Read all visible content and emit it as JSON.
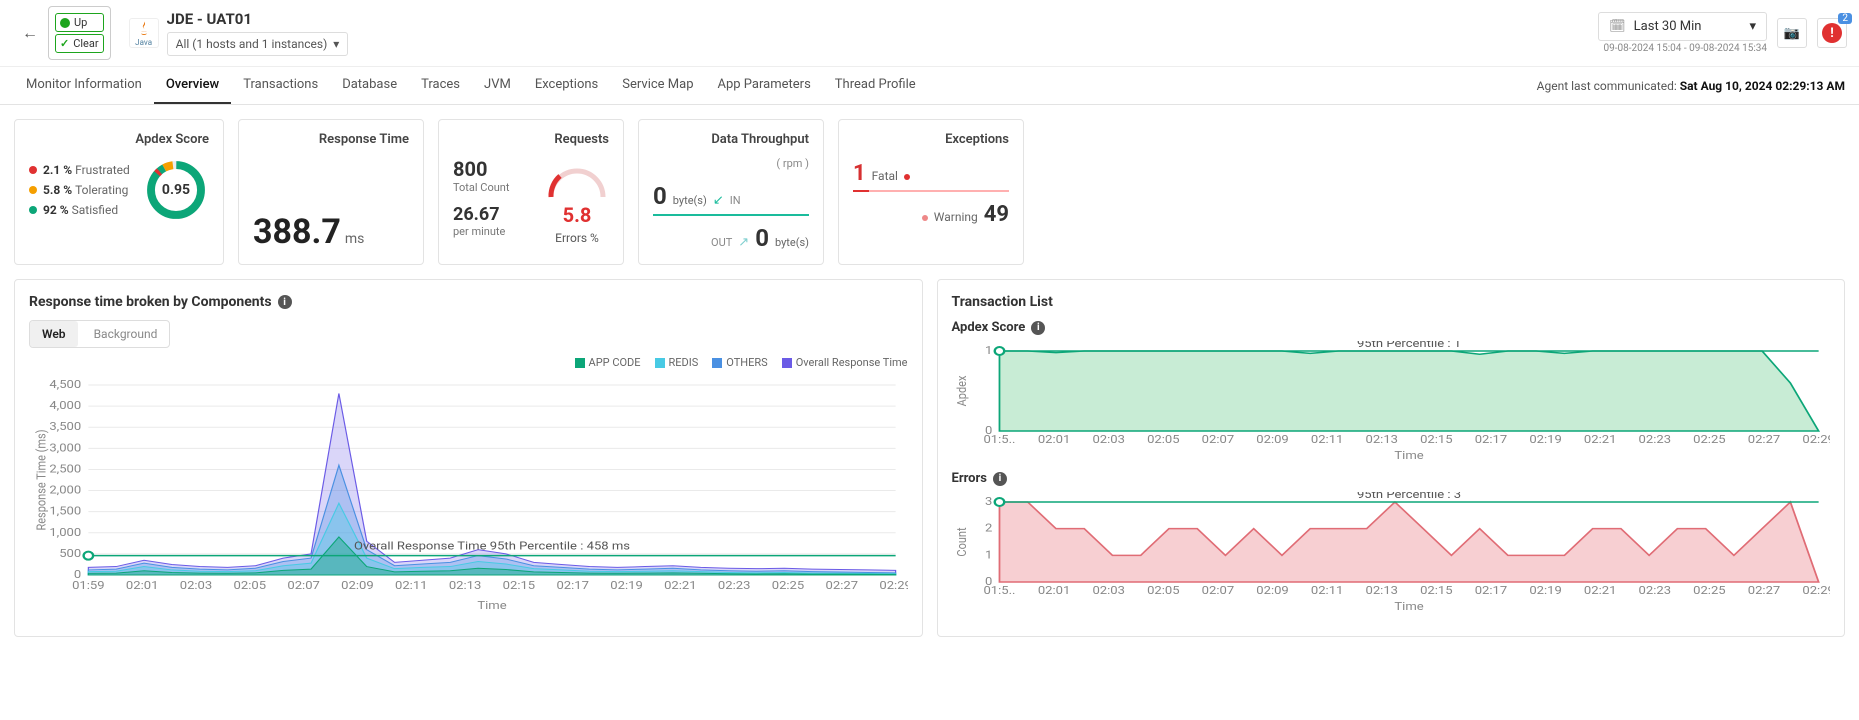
{
  "header": {
    "status_up": "Up",
    "status_clear": "Clear",
    "java_label": "Java",
    "app_title": "JDE - UAT01",
    "host_selector": "All (1 hosts and 1 instances)",
    "timerange_label": "Last 30 Min",
    "timerange_sub": "09-08-2024 15:04 - 09-08-2024 15:34",
    "alert_count": "2",
    "agent_comm_prefix": "Agent last communicated: ",
    "agent_comm_time": "Sat Aug 10, 2024 02:29:13 AM"
  },
  "tabs": [
    "Monitor Information",
    "Overview",
    "Transactions",
    "Database",
    "Traces",
    "JVM",
    "Exceptions",
    "Service Map",
    "App Parameters",
    "Thread Profile"
  ],
  "active_tab": 1,
  "cards": {
    "apdex": {
      "title": "Apdex Score",
      "score": "0.95",
      "items": [
        {
          "pct": "2.1 %",
          "label": "Frustrated",
          "color": "#e03131"
        },
        {
          "pct": "5.8 %",
          "label": "Tolerating",
          "color": "#f59f00"
        },
        {
          "pct": "92 %",
          "label": "Satisfied",
          "color": "#0ca678"
        }
      ],
      "donut_colors": {
        "satisfied": "#0ca678",
        "tolerating": "#f59f00",
        "frustrated": "#e03131",
        "bg": "#e9ecef"
      }
    },
    "response_time": {
      "title": "Response Time",
      "value": "388.7",
      "unit": "ms"
    },
    "requests": {
      "title": "Requests",
      "total_count": "800",
      "total_label": "Total Count",
      "per_min": "26.67",
      "per_min_label": "per minute",
      "errors_pct": "5.8",
      "errors_label": "Errors %",
      "gauge_color": "#e03131",
      "gauge_bg": "#f1b7b7"
    },
    "data_throughput": {
      "title": "Data Throughput",
      "sub": "( rpm )",
      "in_val": "0",
      "in_unit": "byte(s)",
      "in_label": "IN",
      "out_val": "0",
      "out_unit": "byte(s)",
      "out_label": "OUT",
      "bar_color": "#1abc9c"
    },
    "exceptions": {
      "title": "Exceptions",
      "fatal_val": "1",
      "fatal_label": "Fatal",
      "warn_val": "49",
      "warn_label": "Warning",
      "fatal_color": "#e03131",
      "warn_color": "#e88"
    }
  },
  "main_chart": {
    "title": "Response time broken by Components",
    "subtabs": [
      "Web",
      "Background"
    ],
    "active_subtab": 0,
    "legend": [
      {
        "label": "APP CODE",
        "color": "#0ca678"
      },
      {
        "label": "REDIS",
        "color": "#48cae4"
      },
      {
        "label": "OTHERS",
        "color": "#4a90e2"
      },
      {
        "label": "Overall Response Time",
        "color": "#6b5be6"
      }
    ],
    "y_label": "Response Time (ms)",
    "x_label": "Time",
    "y_max": 4500,
    "y_ticks": [
      0,
      500,
      1000,
      1500,
      2000,
      2500,
      3000,
      3500,
      4000,
      4500
    ],
    "x_ticks": [
      "01:59",
      "02:01",
      "02:03",
      "02:05",
      "02:07",
      "02:09",
      "02:11",
      "02:13",
      "02:15",
      "02:17",
      "02:19",
      "02:21",
      "02:23",
      "02:25",
      "02:27",
      "02:29"
    ],
    "percentile_label": "Overall Response Time 95th Percentile : 458 ms",
    "percentile_y": 458,
    "series_overall": [
      180,
      200,
      350,
      250,
      200,
      180,
      220,
      400,
      500,
      4300,
      800,
      300,
      350,
      400,
      600,
      500,
      300,
      250,
      200,
      180,
      200,
      220,
      180,
      160,
      150,
      160,
      140,
      130,
      120,
      110
    ],
    "series_others": [
      120,
      140,
      280,
      180,
      140,
      120,
      160,
      320,
      400,
      2600,
      600,
      220,
      260,
      300,
      460,
      380,
      220,
      180,
      140,
      120,
      140,
      160,
      120,
      100,
      90,
      100,
      80,
      70,
      60,
      50
    ],
    "series_redis": [
      80,
      90,
      200,
      120,
      90,
      80,
      100,
      220,
      280,
      1700,
      400,
      150,
      180,
      200,
      320,
      260,
      150,
      120,
      90,
      80,
      90,
      100,
      80,
      60,
      50,
      60,
      45,
      40,
      35,
      30
    ],
    "series_appcode": [
      40,
      45,
      100,
      60,
      45,
      40,
      50,
      110,
      140,
      900,
      200,
      75,
      90,
      100,
      160,
      130,
      75,
      60,
      45,
      40,
      45,
      50,
      40,
      30,
      25,
      30,
      22,
      20,
      18,
      15
    ],
    "grid_color": "#eaeaea",
    "baseline_color": "#0ca678"
  },
  "right_panel": {
    "title": "Transaction List",
    "apdex": {
      "title": "Apdex Score",
      "y_label": "Apdex",
      "x_label": "Time",
      "percentile_label": "95th Percentile : 1",
      "y_max": 1,
      "x_ticks": [
        "01:5..",
        "02:01",
        "02:03",
        "02:05",
        "02:07",
        "02:09",
        "02:11",
        "02:13",
        "02:15",
        "02:17",
        "02:19",
        "02:21",
        "02:23",
        "02:25",
        "02:27",
        "02:29"
      ],
      "values": [
        1,
        1,
        0.98,
        1,
        1,
        1,
        1,
        1,
        1,
        1,
        1,
        0.97,
        1,
        1,
        1,
        1,
        1,
        0.96,
        1,
        1,
        0.97,
        1,
        1,
        1,
        1,
        1,
        1,
        1,
        0.6,
        0
      ],
      "fill": "#c8ecd5",
      "line": "#0ca678",
      "pct_line": "#0ca678"
    },
    "errors": {
      "title": "Errors",
      "y_label": "Count",
      "x_label": "Time",
      "percentile_label": "95th Percentile : 3",
      "y_max": 3,
      "x_ticks": [
        "01:5..",
        "02:01",
        "02:03",
        "02:05",
        "02:07",
        "02:09",
        "02:11",
        "02:13",
        "02:15",
        "02:17",
        "02:19",
        "02:21",
        "02:23",
        "02:25",
        "02:27",
        "02:29"
      ],
      "values": [
        3,
        3,
        2,
        2,
        1,
        1,
        2,
        2,
        1,
        2,
        1,
        2,
        2,
        2,
        3,
        2,
        1,
        2,
        1,
        1,
        1,
        2,
        2,
        1,
        2,
        2,
        1,
        2,
        3,
        0
      ],
      "fill": "#f7cfd2",
      "line": "#e06c75",
      "pct_line": "#0ca678"
    }
  }
}
